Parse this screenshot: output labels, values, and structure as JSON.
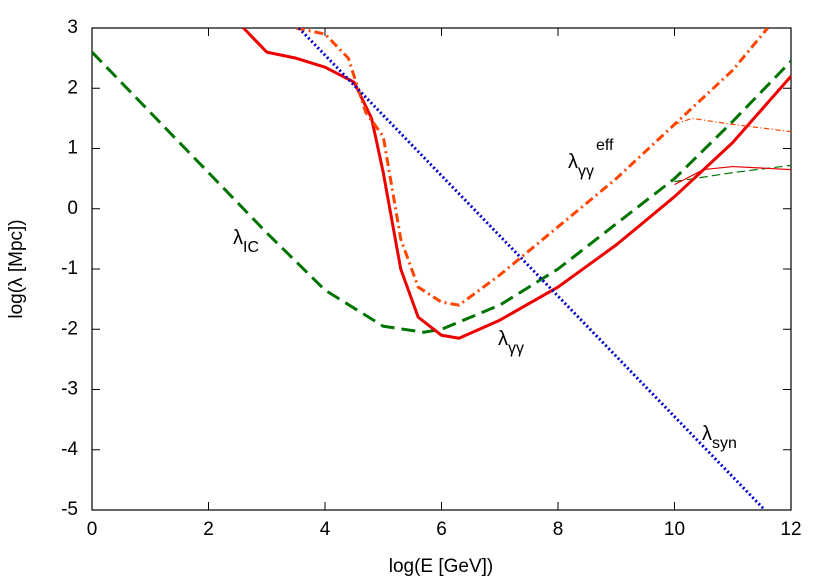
{
  "chart_data": {
    "type": "line",
    "xlabel": "log(E [GeV])",
    "ylabel": "log(λ [Mpc])",
    "xlim": [
      0,
      12
    ],
    "ylim": [
      -5,
      3
    ],
    "xticks": [
      0,
      2,
      4,
      6,
      8,
      10,
      12
    ],
    "yticks": [
      -5,
      -4,
      -3,
      -2,
      -1,
      0,
      1,
      2,
      3
    ],
    "grid": false,
    "series": [
      {
        "color": "#007400",
        "style": "dashed",
        "weight": "thick",
        "x": [
          0,
          1,
          2,
          3,
          4,
          5,
          5.7,
          6,
          7,
          8,
          9,
          10,
          11,
          12
        ],
        "values": [
          2.6,
          1.6,
          0.6,
          -0.4,
          -1.35,
          -1.95,
          -2.05,
          -2.0,
          -1.6,
          -1.0,
          -0.25,
          0.5,
          1.45,
          2.45
        ]
      },
      {
        "color": "#007400",
        "style": "dashed",
        "weight": "thin",
        "x": [
          10,
          11,
          12
        ],
        "values": [
          0.45,
          0.6,
          0.72
        ]
      },
      {
        "color": "#ee0000",
        "style": "solid",
        "weight": "thick",
        "x": [
          2.6,
          3,
          3.5,
          4,
          4.5,
          4.8,
          5,
          5.3,
          5.6,
          6,
          6.3,
          7,
          8,
          9,
          10,
          11,
          12
        ],
        "values": [
          3,
          2.6,
          2.5,
          2.35,
          2.1,
          1.5,
          0.6,
          -1.0,
          -1.8,
          -2.1,
          -2.15,
          -1.85,
          -1.3,
          -0.6,
          0.2,
          1.1,
          2.2
        ]
      },
      {
        "color": "#ee0000",
        "style": "solid",
        "weight": "thin",
        "x": [
          10,
          10.5,
          11,
          12
        ],
        "values": [
          0.4,
          0.65,
          0.7,
          0.65
        ]
      },
      {
        "color": "#ff4500",
        "style": "dashdot",
        "weight": "thick",
        "x": [
          3.5,
          4,
          4.4,
          4.7,
          5,
          5.3,
          5.6,
          6,
          6.3,
          7,
          8,
          9,
          10,
          11,
          11.6
        ],
        "values": [
          3,
          2.9,
          2.5,
          1.6,
          1.2,
          -0.5,
          -1.3,
          -1.55,
          -1.6,
          -1.1,
          -0.3,
          0.5,
          1.4,
          2.3,
          3
        ]
      },
      {
        "color": "#ff4500",
        "style": "dashdot",
        "weight": "thin",
        "x": [
          10,
          10.3,
          11,
          12
        ],
        "values": [
          1.4,
          1.5,
          1.4,
          1.28
        ]
      },
      {
        "color": "#0000cc",
        "style": "dotted",
        "weight": "thick",
        "x": [
          3.55,
          11.55
        ],
        "values": [
          3,
          -5
        ]
      }
    ],
    "annotations": [
      {
        "text": "λ",
        "sub": "IC"
      },
      {
        "text": "λ",
        "sub": "γγ"
      },
      {
        "text": "λ",
        "sub": "γγ",
        "sup": "eff"
      },
      {
        "text": "λ",
        "sub": "syn"
      }
    ]
  }
}
